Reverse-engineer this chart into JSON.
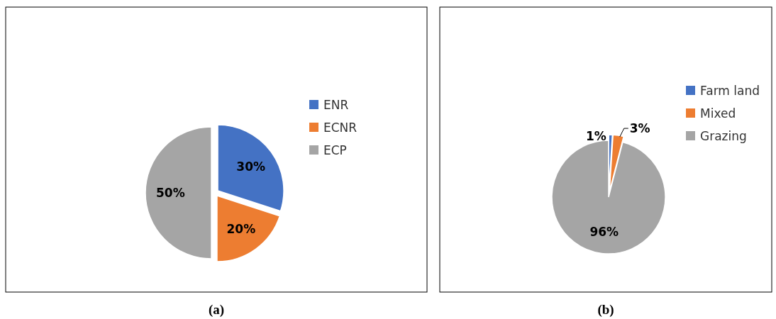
{
  "chart_data": [
    {
      "type": "pie",
      "title": "(a)",
      "categories": [
        "ENR",
        "ECNR",
        "ECP"
      ],
      "values": [
        30,
        20,
        50
      ],
      "colors": [
        "#4472c4",
        "#ed7d31",
        "#a5a5a5"
      ],
      "value_labels": [
        "30%",
        "20%",
        "50%"
      ],
      "legend": "right"
    },
    {
      "type": "pie",
      "title": "(b)",
      "categories": [
        "Farm land",
        "Mixed",
        "Grazing"
      ],
      "values": [
        1,
        3,
        96
      ],
      "colors": [
        "#4472c4",
        "#ed7d31",
        "#a5a5a5"
      ],
      "value_labels": [
        "1%",
        "3%",
        "96%"
      ],
      "legend": "right"
    }
  ]
}
